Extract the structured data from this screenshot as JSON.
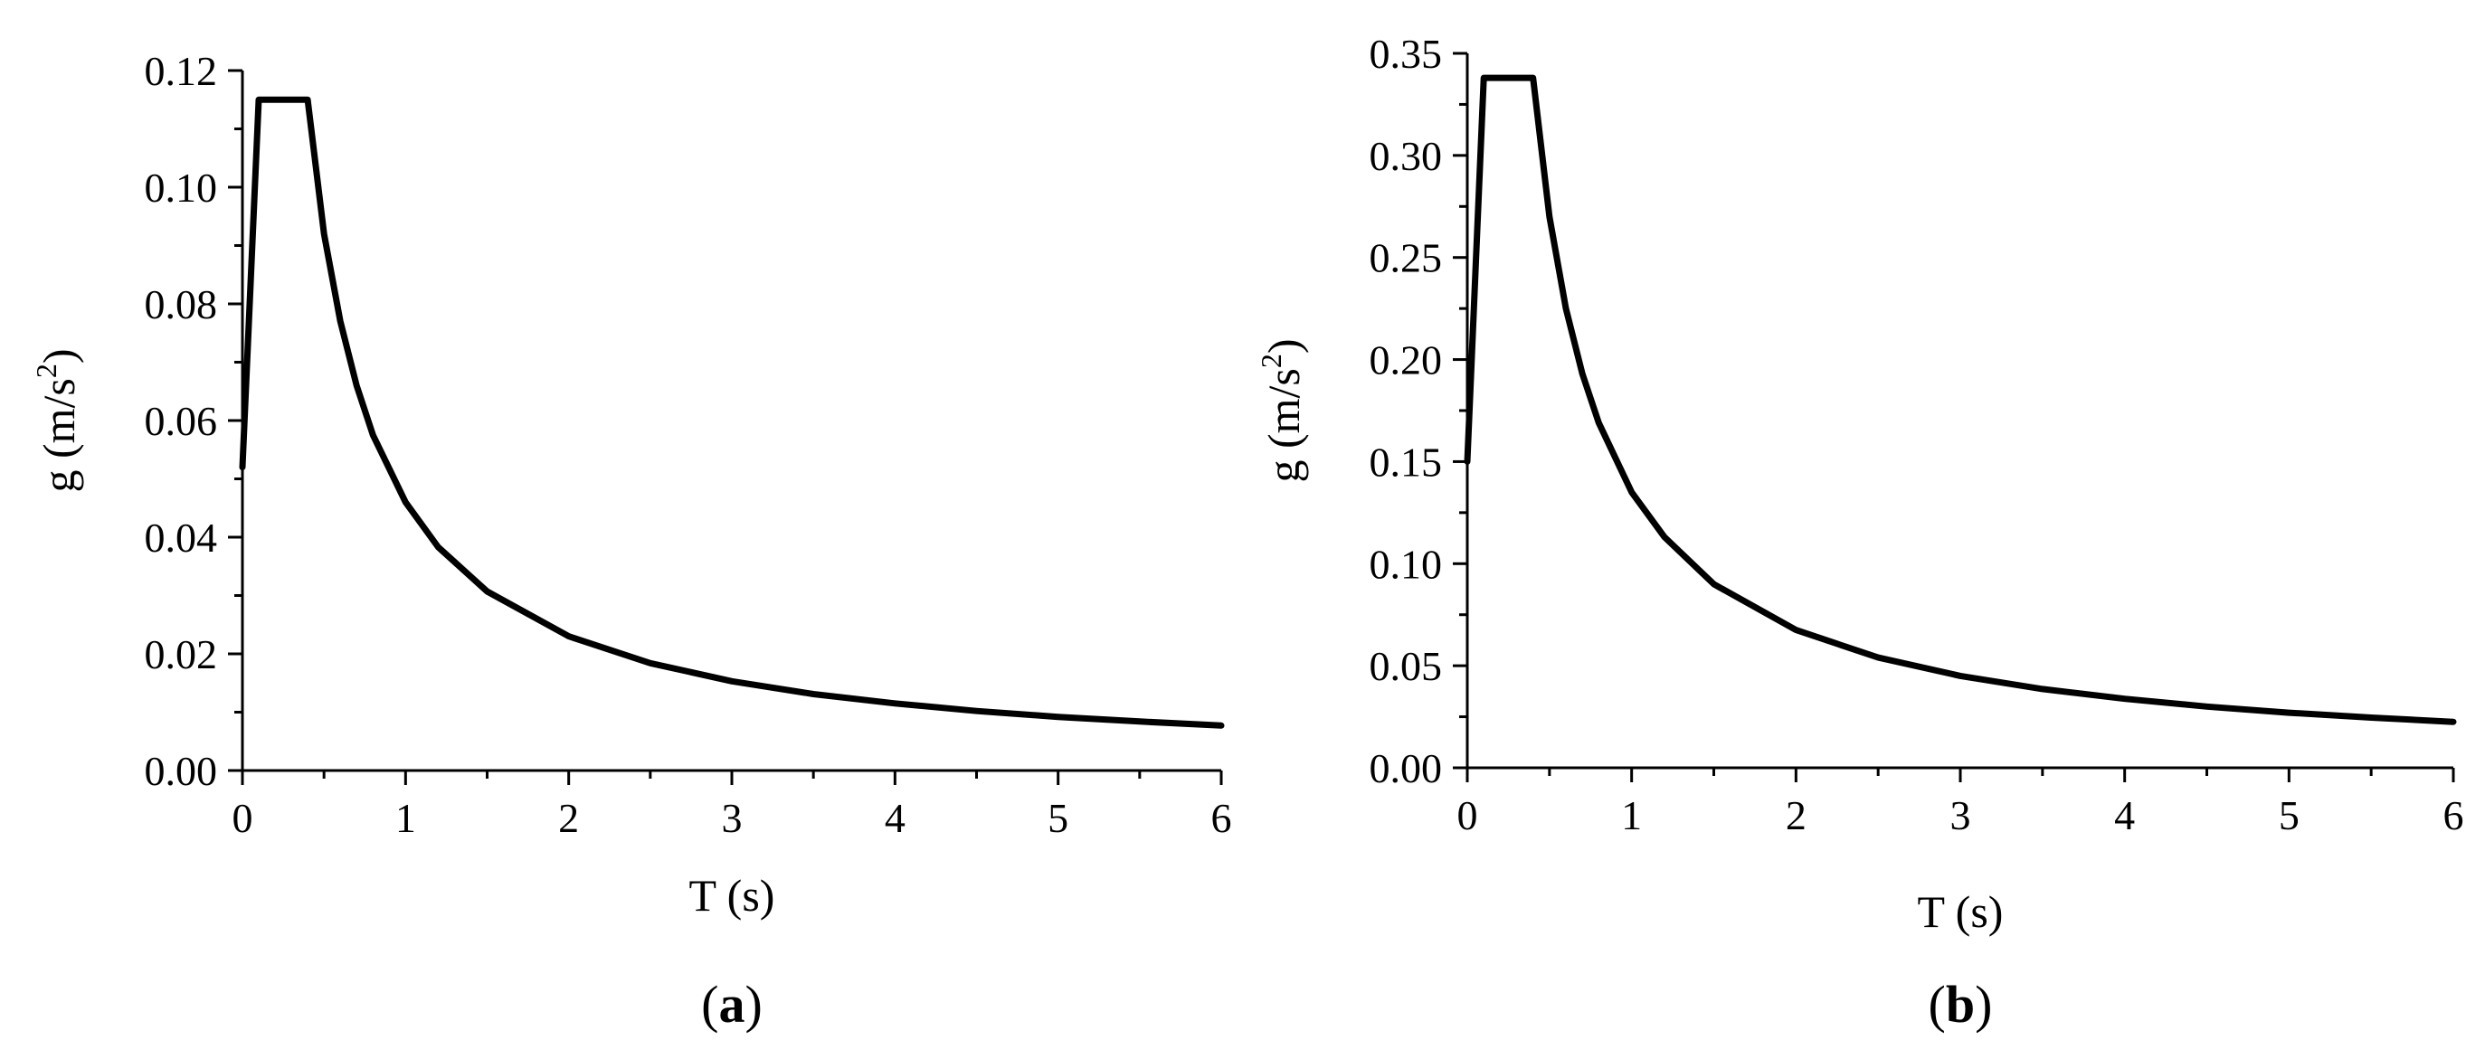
{
  "chart_data": [
    {
      "type": "line",
      "panel_label": "a",
      "xlabel": "T (s)",
      "ylabel_main": "g (m/s",
      "ylabel_sup": "2",
      "ylabel_end": ")",
      "xlim": [
        0,
        6
      ],
      "ylim": [
        0,
        0.12
      ],
      "x_ticks": [
        "0",
        "1",
        "2",
        "3",
        "4",
        "5",
        "6"
      ],
      "y_ticks": [
        "0.00",
        "0.02",
        "0.04",
        "0.06",
        "0.08",
        "0.10",
        "0.12"
      ],
      "series": [
        {
          "x": [
            0,
            0.1,
            0.4,
            0.5,
            0.6,
            0.7,
            0.8,
            1.0,
            1.2,
            1.5,
            2.0,
            2.5,
            3.0,
            3.5,
            4.0,
            4.5,
            5.0,
            5.5,
            6.0
          ],
          "values": [
            0.052,
            0.115,
            0.115,
            0.092,
            0.077,
            0.066,
            0.0575,
            0.046,
            0.0383,
            0.0307,
            0.023,
            0.0184,
            0.0153,
            0.0131,
            0.0115,
            0.0102,
            0.0092,
            0.0084,
            0.0077
          ]
        }
      ]
    },
    {
      "type": "line",
      "panel_label": "b",
      "xlabel": "T (s)",
      "ylabel_main": "g (m/s",
      "ylabel_sup": "2",
      "ylabel_end": ")",
      "xlim": [
        0,
        6
      ],
      "ylim": [
        0,
        0.35
      ],
      "x_ticks": [
        "0",
        "1",
        "2",
        "3",
        "4",
        "5",
        "6"
      ],
      "y_ticks": [
        "0.00",
        "0.05",
        "0.10",
        "0.15",
        "0.20",
        "0.25",
        "0.30",
        "0.35"
      ],
      "series": [
        {
          "x": [
            0,
            0.1,
            0.4,
            0.5,
            0.6,
            0.7,
            0.8,
            1.0,
            1.2,
            1.5,
            2.0,
            2.5,
            3.0,
            3.5,
            4.0,
            4.5,
            5.0,
            5.5,
            6.0
          ],
          "values": [
            0.15,
            0.338,
            0.338,
            0.27,
            0.225,
            0.193,
            0.169,
            0.135,
            0.113,
            0.09,
            0.0675,
            0.054,
            0.045,
            0.0386,
            0.0338,
            0.03,
            0.027,
            0.0246,
            0.0225
          ]
        }
      ]
    }
  ]
}
